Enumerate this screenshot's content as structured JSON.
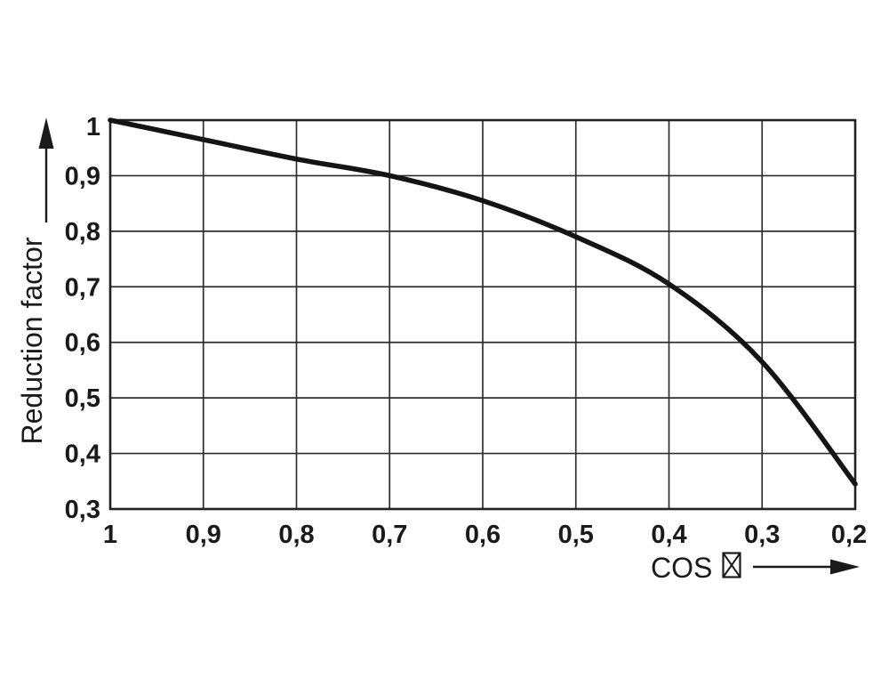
{
  "figure": {
    "background_color": "#ffffff",
    "text_color": "#1a1a1a"
  },
  "chart_data": {
    "type": "line",
    "title": "",
    "xlabel": "COS",
    "xlabel_symbol": "☒",
    "ylabel": "Reduction factor",
    "x_tick_labels": [
      "1",
      "0,9",
      "0,8",
      "0,7",
      "0,6",
      "0,5",
      "0,4",
      "0,3",
      "0,2"
    ],
    "y_tick_labels": [
      "1",
      "0,9",
      "0,8",
      "0,7",
      "0,6",
      "0,5",
      "0,4",
      "0,3"
    ],
    "x_tick_values": [
      1.0,
      0.9,
      0.8,
      0.7,
      0.6,
      0.5,
      0.4,
      0.3,
      0.2
    ],
    "y_tick_values": [
      1.0,
      0.9,
      0.8,
      0.7,
      0.6,
      0.5,
      0.4,
      0.3
    ],
    "x": [
      1.0,
      0.9,
      0.8,
      0.7,
      0.6,
      0.5,
      0.4,
      0.3,
      0.2
    ],
    "series": [
      {
        "name": "reduction-factor-curve",
        "values": [
          1.0,
          0.965,
          0.93,
          0.9,
          0.855,
          0.79,
          0.705,
          0.565,
          0.345
        ]
      }
    ],
    "xlim": [
      1.0,
      0.2
    ],
    "ylim": [
      0.3,
      1.0
    ],
    "x_axis_reversed": true,
    "grid": true,
    "legend": "none",
    "line_color": "#141414",
    "grid_color": "#2e2e2e",
    "border_color": "#222222",
    "text_color": "#1a1a1a"
  }
}
